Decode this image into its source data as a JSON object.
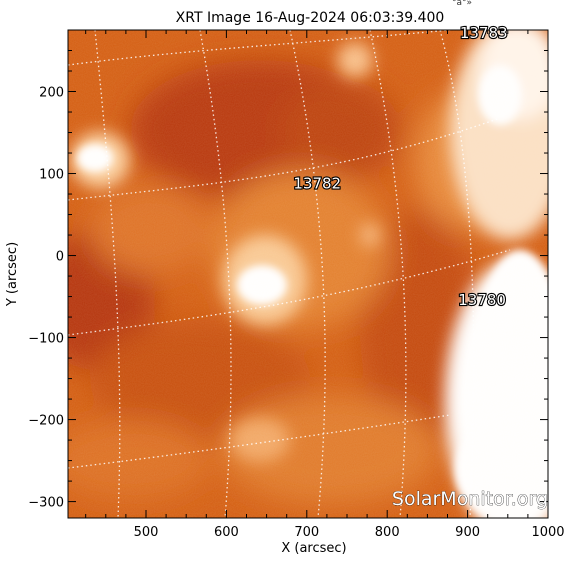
{
  "title": "XRT Image 16-Aug-2024 06:03:39.400",
  "header_fragment": "°á°»",
  "x_axis": {
    "label": "X (arcsec)",
    "ticks": [
      {
        "value": 500,
        "label": "500"
      },
      {
        "value": 600,
        "label": "600"
      },
      {
        "value": 700,
        "label": "700"
      },
      {
        "value": 800,
        "label": "800"
      },
      {
        "value": 900,
        "label": "900"
      },
      {
        "value": 1000,
        "label": "1000"
      }
    ],
    "range": [
      403,
      1000
    ]
  },
  "y_axis": {
    "label": "Y (arcsec)",
    "ticks": [
      {
        "value": 200,
        "label": "200"
      },
      {
        "value": 100,
        "label": "100"
      },
      {
        "value": 0,
        "label": "0"
      },
      {
        "value": -100,
        "label": "−100"
      },
      {
        "value": -200,
        "label": "−200"
      },
      {
        "value": -300,
        "label": "−300"
      }
    ],
    "range": [
      -320,
      275
    ]
  },
  "regions": [
    {
      "label": "13783",
      "x": 920,
      "y": 265
    },
    {
      "label": "13782",
      "x": 713,
      "y": 82
    },
    {
      "label": "13780",
      "x": 918,
      "y": -60
    }
  ],
  "watermark": "SolarMonitor.org",
  "colors": {
    "deep": "#b83800",
    "mid": "#d9661a",
    "bright": "#f3a45c",
    "saturated": "#ffffff"
  }
}
